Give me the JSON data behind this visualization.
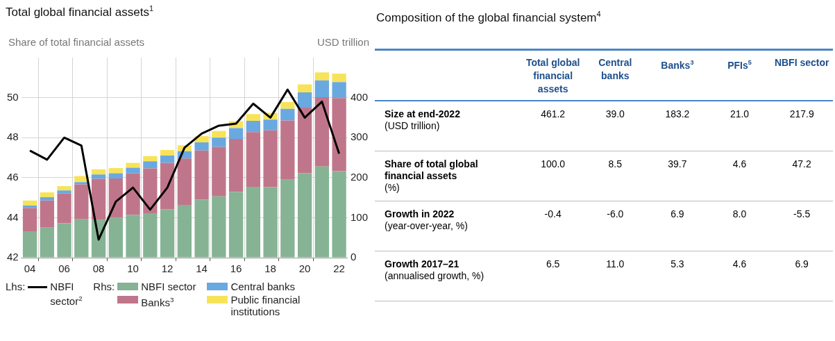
{
  "chart_data": [
    {
      "type": "bar",
      "title": "Total global financial assets$^{1}$",
      "ylabel": "Share of total financial assets",
      "y2label": "USD trillion",
      "categories": [
        "04",
        null,
        "06",
        null,
        "08",
        null,
        "10",
        null,
        "12",
        null,
        "14",
        null,
        "16",
        null,
        "18",
        null,
        "20",
        null,
        "22"
      ],
      "series": [
        {
          "name": "NBFI sector$^{2}$",
          "type": "line",
          "axis": "y",
          "color": "#000000",
          "values": [
            47.35,
            46.9,
            48.0,
            47.6,
            42.9,
            44.8,
            45.5,
            44.4,
            45.5,
            47.5,
            48.2,
            48.6,
            48.7,
            49.7,
            49.0,
            50.4,
            49.0,
            49.8,
            47.2
          ]
        },
        {
          "name": "NBFI sector",
          "type": "bar",
          "axis": "y2",
          "color": "#86b394",
          "values": [
            66,
            75,
            86,
            96,
            94,
            100,
            107,
            111,
            121,
            132,
            145,
            153,
            164,
            177,
            176,
            195,
            211,
            228,
            216
          ]
        },
        {
          "name": "Banks$^{3}$",
          "type": "bar",
          "axis": "y2",
          "color": "#c0768a",
          "values": [
            58,
            68,
            74,
            87,
            103,
            98,
            104,
            112,
            116,
            116,
            123,
            124,
            133,
            137,
            142,
            148,
            164,
            173,
            183
          ]
        },
        {
          "name": "Central banks",
          "type": "bar",
          "axis": "y2",
          "color": "#6aa8e0",
          "values": [
            6,
            8,
            8,
            6,
            11,
            13,
            14,
            18,
            18,
            18,
            20,
            23,
            27,
            28,
            27,
            29,
            38,
            42,
            40
          ]
        },
        {
          "name": "Public financial institutions",
          "type": "bar",
          "axis": "y2",
          "color": "#f7e35a",
          "values": [
            13,
            12,
            11,
            15,
            13,
            13,
            12,
            13,
            14,
            15,
            16,
            17,
            17,
            17,
            17,
            17,
            20,
            20,
            21
          ]
        }
      ],
      "stacked": true,
      "ylim": [
        42,
        52
      ],
      "yticks": [
        42,
        44,
        46,
        48,
        50
      ],
      "y2lim": [
        0,
        500
      ],
      "y2ticks": [
        0,
        100,
        200,
        300,
        400
      ],
      "grid": true,
      "legend": "bottom",
      "marker": "none",
      "annotations": [
        "Lhs:",
        "Rhs:"
      ]
    },
    {
      "type": "other",
      "title": "Composition of the global financial system$^{4}$",
      "categories": [
        "Total global financial assets",
        "Central banks",
        "Banks$^{3}$",
        "PFIs$^{5}$",
        "NBFI sector"
      ],
      "y_categories": [
        "Size at end-2022\n(USD trillion)",
        "Share of total global financial assets\n(%)",
        "Growth in 2022\n(year-over-year, %)",
        "Growth 2017–21\n(annualised growth, %)"
      ],
      "cell_labels": [
        [
          "461.2",
          "39.0",
          "183.2",
          "21.0",
          "217.9"
        ],
        [
          "100.0",
          "8.5",
          "39.7",
          "4.6",
          "47.2"
        ],
        [
          "-0.4",
          "-6.0",
          "6.9",
          "8.0",
          "-5.5"
        ],
        [
          "6.5",
          "11.0",
          "5.3",
          "4.6",
          "6.9"
        ]
      ]
    }
  ]
}
